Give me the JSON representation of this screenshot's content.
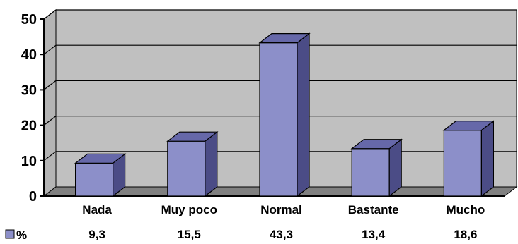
{
  "chart_data": {
    "type": "bar",
    "style": "3d-column",
    "categories": [
      "Nada",
      "Muy poco",
      "Normal",
      "Bastante",
      "Mucho"
    ],
    "series": [
      {
        "name": "%",
        "values": [
          9.3,
          15.5,
          43.3,
          13.4,
          18.6
        ]
      }
    ],
    "data_labels": [
      "9,3",
      "15,5",
      "43,3",
      "13,4",
      "18,6"
    ],
    "yticks": [
      0,
      10,
      20,
      30,
      40,
      50
    ],
    "ylim": [
      0,
      50
    ],
    "grid": true,
    "legend": "data-table-left",
    "colors": {
      "bar_front": "#8c8fc9",
      "bar_side": "#4b4c86",
      "bar_top": "#6668a9",
      "bar_outline": "#000000",
      "plot_wall": "#c0c0c0",
      "plot_floor": "#808080",
      "gridline": "#000000"
    }
  }
}
